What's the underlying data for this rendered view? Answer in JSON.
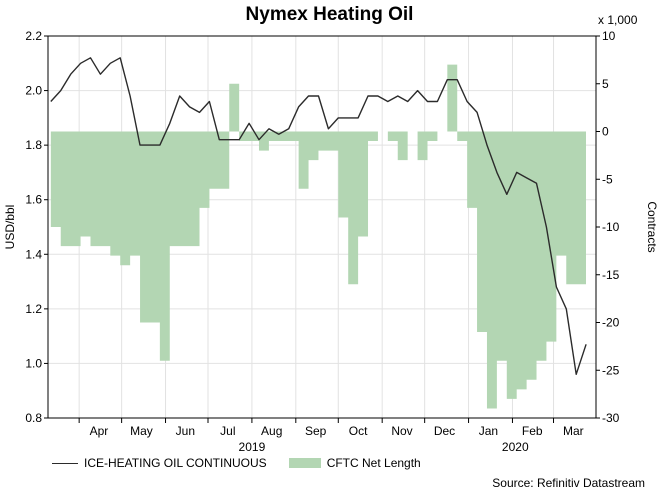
{
  "chart_data": {
    "type": "line",
    "title": "Nymex Heating Oil",
    "ylabel": "USD/bbl",
    "ylabel_right": "Contracts",
    "right_axis_unit": "x 1,000",
    "source": "Source: Refinitiv Datastream",
    "ylim": [
      0.8,
      2.2
    ],
    "ylim_right": [
      -30,
      10
    ],
    "yticks": [
      "0.8",
      "1.0",
      "1.2",
      "1.4",
      "1.6",
      "1.8",
      "2.0",
      "2.2"
    ],
    "yticks_right": [
      "-30",
      "-25",
      "-20",
      "-15",
      "-10",
      "-5",
      "0",
      "5",
      "10"
    ],
    "x_tick_labels": [
      "Apr",
      "May",
      "Jun",
      "Jul",
      "Aug",
      "Sep",
      "Oct",
      "Nov",
      "Dec",
      "Jan",
      "Feb",
      "Mar"
    ],
    "year_labels": [
      "2019",
      "2020"
    ],
    "grid": true,
    "legend": "bottom-left",
    "series": [
      {
        "name": "ICE-HEATING OIL CONTINUOUS",
        "type": "line",
        "axis": "left",
        "color": "#2b2b2b",
        "x": [
          "2019-03-12",
          "2019-03-19",
          "2019-03-26",
          "2019-04-02",
          "2019-04-09",
          "2019-04-16",
          "2019-04-23",
          "2019-04-30",
          "2019-05-07",
          "2019-05-14",
          "2019-05-21",
          "2019-05-28",
          "2019-06-04",
          "2019-06-11",
          "2019-06-18",
          "2019-06-25",
          "2019-07-02",
          "2019-07-09",
          "2019-07-16",
          "2019-07-23",
          "2019-07-30",
          "2019-08-06",
          "2019-08-13",
          "2019-08-20",
          "2019-08-27",
          "2019-09-03",
          "2019-09-10",
          "2019-09-17",
          "2019-09-24",
          "2019-10-01",
          "2019-10-08",
          "2019-10-15",
          "2019-10-22",
          "2019-10-29",
          "2019-11-05",
          "2019-11-12",
          "2019-11-19",
          "2019-11-26",
          "2019-12-03",
          "2019-12-10",
          "2019-12-17",
          "2019-12-24",
          "2019-12-31",
          "2020-01-07",
          "2020-01-14",
          "2020-01-21",
          "2020-01-28",
          "2020-02-04",
          "2020-02-11",
          "2020-02-18",
          "2020-02-25",
          "2020-03-03",
          "2020-03-10",
          "2020-03-17",
          "2020-03-24"
        ],
        "values": [
          1.96,
          2.0,
          2.06,
          2.1,
          2.12,
          2.06,
          2.1,
          2.12,
          1.98,
          1.8,
          1.8,
          1.8,
          1.88,
          1.98,
          1.94,
          1.92,
          1.96,
          1.82,
          1.82,
          1.82,
          1.88,
          1.82,
          1.86,
          1.84,
          1.86,
          1.94,
          1.98,
          1.98,
          1.86,
          1.9,
          1.9,
          1.9,
          1.98,
          1.98,
          1.96,
          1.98,
          1.96,
          2.0,
          1.96,
          1.96,
          2.04,
          2.04,
          1.96,
          1.92,
          1.8,
          1.7,
          1.62,
          1.7,
          1.68,
          1.66,
          1.5,
          1.28,
          1.2,
          0.96,
          1.07
        ]
      },
      {
        "name": "CFTC Net Length",
        "type": "area",
        "axis": "right",
        "color": "#b3d6b3",
        "x": [
          "2019-03-12",
          "2019-03-19",
          "2019-03-26",
          "2019-04-02",
          "2019-04-09",
          "2019-04-16",
          "2019-04-23",
          "2019-04-30",
          "2019-05-07",
          "2019-05-14",
          "2019-05-21",
          "2019-05-28",
          "2019-06-04",
          "2019-06-11",
          "2019-06-18",
          "2019-06-25",
          "2019-07-02",
          "2019-07-09",
          "2019-07-16",
          "2019-07-23",
          "2019-07-30",
          "2019-08-06",
          "2019-08-13",
          "2019-08-20",
          "2019-08-27",
          "2019-09-03",
          "2019-09-10",
          "2019-09-17",
          "2019-09-24",
          "2019-10-01",
          "2019-10-08",
          "2019-10-15",
          "2019-10-22",
          "2019-10-29",
          "2019-11-05",
          "2019-11-12",
          "2019-11-19",
          "2019-11-26",
          "2019-12-03",
          "2019-12-10",
          "2019-12-17",
          "2019-12-24",
          "2019-12-31",
          "2020-01-07",
          "2020-01-14",
          "2020-01-21",
          "2020-01-28",
          "2020-02-04",
          "2020-02-11",
          "2020-02-18",
          "2020-02-25",
          "2020-03-03",
          "2020-03-10",
          "2020-03-17",
          "2020-03-24"
        ],
        "values": [
          -10,
          -12,
          -12,
          -11,
          -12,
          -12,
          -13,
          -14,
          -13,
          -20,
          -20,
          -24,
          -12,
          -12,
          -12,
          -8,
          -6,
          -6,
          5,
          -1,
          -1,
          -2,
          -1,
          -1,
          -1,
          -6,
          -3,
          -2,
          -2,
          -9,
          -16,
          -11,
          -1,
          0,
          -1,
          -3,
          0,
          -3,
          -1,
          0,
          7,
          -1,
          -8,
          -21,
          -29,
          -24,
          -28,
          -27,
          -26,
          -24,
          -22,
          -13,
          -16,
          -16,
          -16
        ]
      }
    ]
  }
}
